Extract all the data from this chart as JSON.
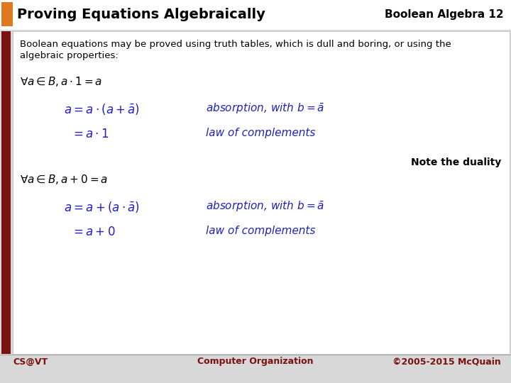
{
  "title": "Proving Equations Algebraically",
  "subtitle": "Boolean Algebra 12",
  "orange_rect_color": "#e07820",
  "dark_red_bar": "#7a1010",
  "white": "#ffffff",
  "bg_color": "#d8d8d8",
  "intro_text_line1": "Boolean equations may be proved using truth tables, which is dull and boring, or using the",
  "intro_text_line2": "algebraic properties:",
  "footer_left": "CS@VT",
  "footer_center": "Computer Organization",
  "footer_right": "©2005-2015 McQuain",
  "blue_color": "#2222bb",
  "black_color": "#111111",
  "dark_red_footer": "#7a1010",
  "note_duality": "Note the duality"
}
